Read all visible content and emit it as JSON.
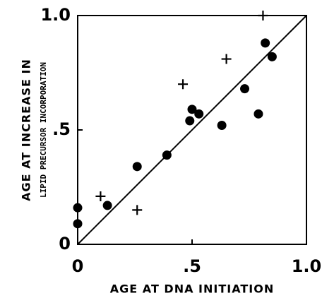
{
  "chart_data": {
    "type": "scatter",
    "x_label": "AGE AT DNA INITIATION",
    "y_label": "AGE AT INCREASE IN",
    "y_label_sub": "LIPID PRECURSOR INCORPORATION",
    "xlim": [
      0,
      1
    ],
    "ylim": [
      0,
      1
    ],
    "xticks": [
      0,
      {
        "value": 0.5,
        "label": ".5"
      },
      {
        "value": 1,
        "label": "1.0"
      }
    ],
    "yticks": [
      0,
      {
        "value": 0.5,
        "label": ".5"
      },
      {
        "value": 1,
        "label": "1.0"
      }
    ],
    "reference_line": {
      "x": [
        0,
        1
      ],
      "y": [
        0,
        1
      ]
    },
    "series": [
      {
        "marker": "circle",
        "color": "#000000",
        "x": [
          0,
          0,
          0.13,
          0.26,
          0.39,
          0.49,
          0.5,
          0.53,
          0.63,
          0.73,
          0.79,
          0.82,
          0.85
        ],
        "values": [
          0.16,
          0.09,
          0.17,
          0.34,
          0.39,
          0.54,
          0.59,
          0.57,
          0.52,
          0.68,
          0.57,
          0.88,
          0.82
        ]
      },
      {
        "marker": "plus",
        "color": "#000000",
        "x": [
          0.1,
          0.26,
          0.46,
          0.65,
          0.81
        ],
        "values": [
          0.21,
          0.15,
          0.7,
          0.81,
          1.0
        ]
      }
    ]
  }
}
